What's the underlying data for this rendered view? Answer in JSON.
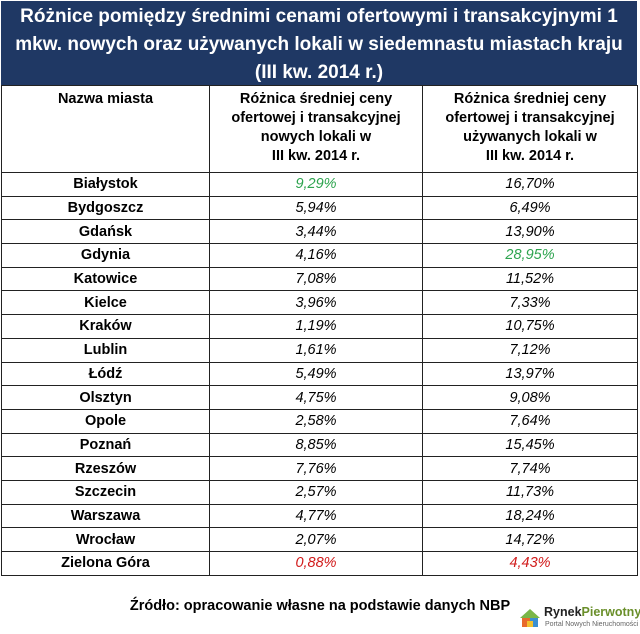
{
  "title": "Różnice pomiędzy średnimi cenami ofertowymi i transakcyjnymi 1 mkw. nowych oraz używanych lokali w siedemnastu miastach kraju (III kw. 2014 r.)",
  "headers": {
    "city": "Nazwa miasta",
    "new_line1": "Różnica średniej ceny",
    "new_line2": "ofertowej i transakcyjnej",
    "new_line3": "nowych lokali w",
    "new_line4": "III kw. 2014 r.",
    "used_line1": "Różnica średniej ceny",
    "used_line2": "ofertowej i transakcyjnej",
    "used_line3": "używanych lokali w",
    "used_line4": "III kw. 2014 r."
  },
  "rows": [
    {
      "city": "Białystok",
      "new": "9,29%",
      "used": "16,70%"
    },
    {
      "city": "Bydgoszcz",
      "new": "5,94%",
      "used": "6,49%"
    },
    {
      "city": "Gdańsk",
      "new": "3,44%",
      "used": "13,90%"
    },
    {
      "city": "Gdynia",
      "new": "4,16%",
      "used": "28,95%"
    },
    {
      "city": "Katowice",
      "new": "7,08%",
      "used": "11,52%"
    },
    {
      "city": "Kielce",
      "new": "3,96%",
      "used": "7,33%"
    },
    {
      "city": "Kraków",
      "new": "1,19%",
      "used": "10,75%"
    },
    {
      "city": "Lublin",
      "new": "1,61%",
      "used": "7,12%"
    },
    {
      "city": "Łódź",
      "new": "5,49%",
      "used": "13,97%"
    },
    {
      "city": "Olsztyn",
      "new": "4,75%",
      "used": "9,08%"
    },
    {
      "city": "Opole",
      "new": "2,58%",
      "used": "7,64%"
    },
    {
      "city": "Poznań",
      "new": "8,85%",
      "used": "15,45%"
    },
    {
      "city": "Rzeszów",
      "new": "7,76%",
      "used": "7,74%"
    },
    {
      "city": "Szczecin",
      "new": "2,57%",
      "used": "11,73%"
    },
    {
      "city": "Warszawa",
      "new": "4,77%",
      "used": "18,24%"
    },
    {
      "city": "Wrocław",
      "new": "2,07%",
      "used": "14,72%"
    },
    {
      "city": "Zielona Góra",
      "new": "0,88%",
      "used": "4,43%"
    }
  ],
  "highlights": {
    "max_color": "#2ea44f",
    "min_color": "#d11a1a",
    "new_max_row": 0,
    "used_max_row": 3,
    "new_min_row": 16,
    "used_min_row": 16
  },
  "source": "Źródło: opracowanie własne na podstawie danych NBP",
  "logo": {
    "brand_a": "Rynek",
    "brand_b": "Pierwotny",
    "tagline": "Portal Nowych Nieruchomości",
    "icon": "house-puzzle-logo-icon"
  }
}
